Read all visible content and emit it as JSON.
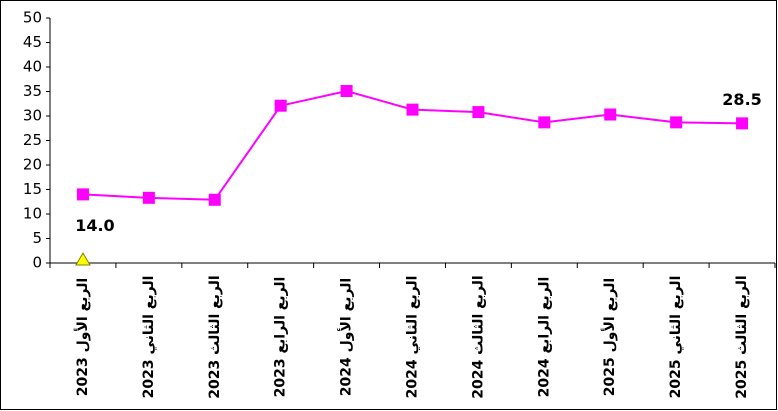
{
  "chart_data": {
    "type": "line",
    "categories": [
      "الربع الأول 2023",
      "الربع الثاني 2023",
      "الربع الثالث 2023",
      "الربع الرابع 2023",
      "الربع الأول 2024",
      "الربع الثاني 2024",
      "الربع الثالث 2024",
      "الربع الرابع 2024",
      "الربع الأول 2025",
      "الربع الثاني 2025",
      "الربع الثالث 2025"
    ],
    "series": [
      {
        "color": "#ff00ff",
        "marker": "square",
        "values": [
          14.0,
          13.3,
          12.9,
          32.1,
          35.1,
          31.3,
          30.8,
          28.7,
          30.3,
          28.7,
          28.5
        ],
        "value_labels": [
          "14.0",
          null,
          null,
          null,
          null,
          null,
          null,
          null,
          null,
          null,
          "28.5"
        ]
      },
      {
        "color": "#ffff00",
        "marker": "triangle",
        "values": [
          0.6,
          null,
          null,
          null,
          null,
          null,
          null,
          null,
          null,
          null,
          null
        ]
      }
    ],
    "ylim": [
      0,
      50
    ],
    "yticks": [
      0,
      5,
      10,
      15,
      20,
      25,
      30,
      35,
      40,
      45,
      50
    ],
    "grid": false
  }
}
